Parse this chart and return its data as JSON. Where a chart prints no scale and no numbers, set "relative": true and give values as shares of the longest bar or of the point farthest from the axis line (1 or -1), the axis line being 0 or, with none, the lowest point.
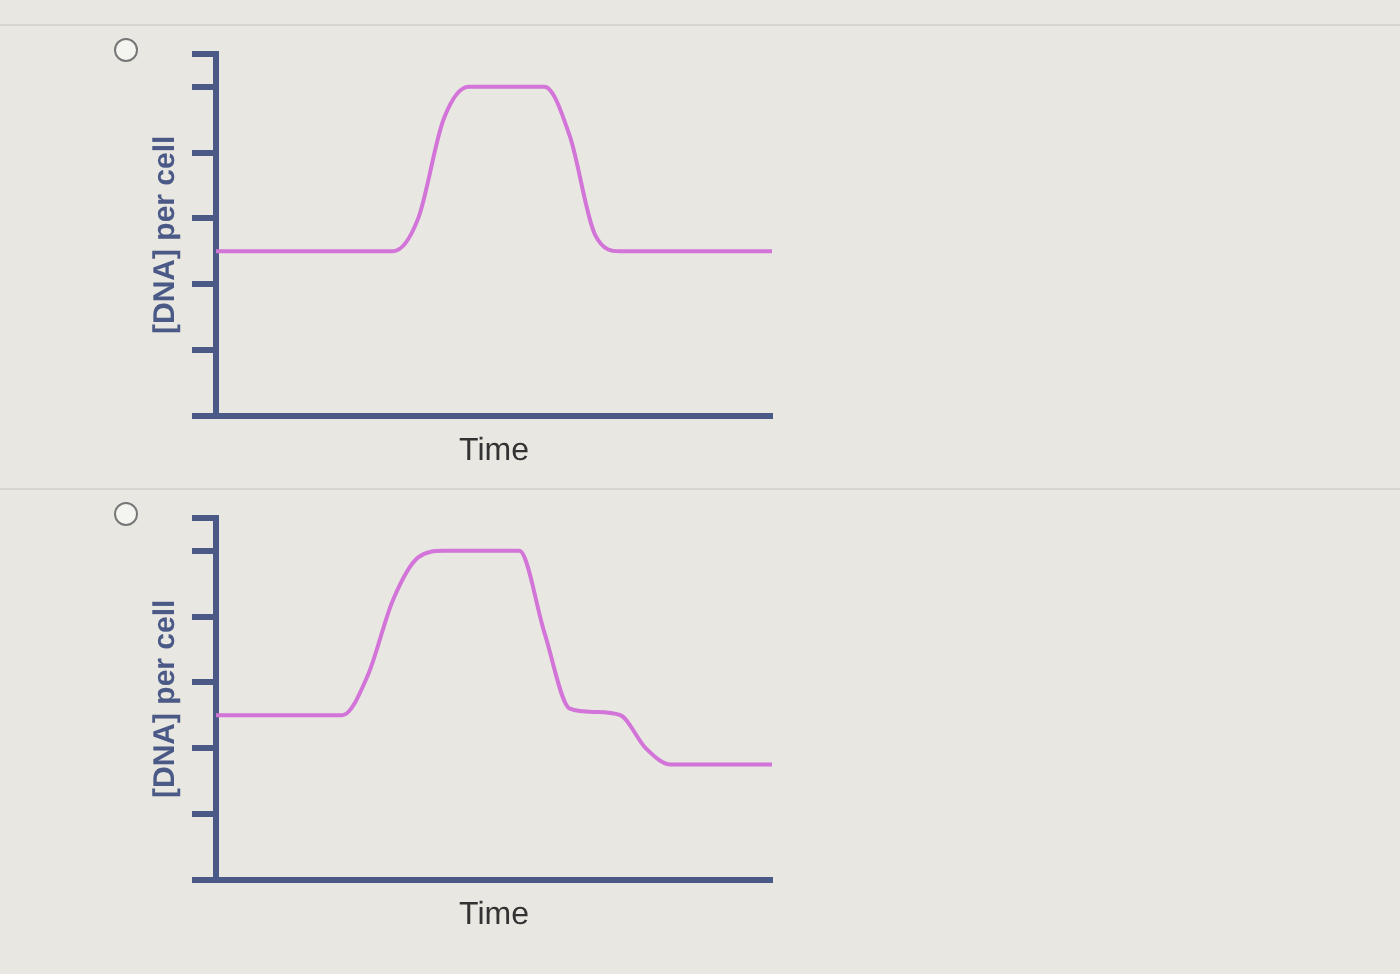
{
  "chart_data": [
    {
      "type": "line",
      "xlabel": "Time",
      "ylabel": "[DNA] per cell",
      "relative": true,
      "categories": [
        null,
        null,
        null,
        null,
        null,
        null,
        null,
        null,
        null,
        null,
        null,
        null,
        null,
        null,
        null,
        null,
        null,
        null,
        null,
        null,
        null,
        null,
        null
      ],
      "series": [
        {
          "color": "#d274d8",
          "values": [
            0.5,
            0.5,
            0.5,
            0.5,
            0.5,
            0.5,
            0.5,
            0.5,
            0.6,
            0.9,
            1,
            1,
            1,
            1,
            0.85,
            0.55,
            0.5,
            0.5,
            0.5,
            0.5,
            0.5,
            0.5,
            0.5
          ]
        }
      ],
      "grid": false,
      "legend": false,
      "marker": "none"
    },
    {
      "type": "line",
      "xlabel": "Time",
      "ylabel": "[DNA] per cell",
      "relative": true,
      "categories": [
        null,
        null,
        null,
        null,
        null,
        null,
        null,
        null,
        null,
        null,
        null,
        null,
        null,
        null,
        null,
        null,
        null,
        null,
        null,
        null,
        null,
        null,
        null
      ],
      "series": [
        {
          "color": "#d274d8",
          "values": [
            0.5,
            0.5,
            0.5,
            0.5,
            0.5,
            0.5,
            0.62,
            0.85,
            0.98,
            1,
            1,
            1,
            1,
            0.75,
            0.52,
            0.51,
            0.5,
            0.4,
            0.35,
            0.35,
            0.35,
            0.35,
            0.35
          ]
        }
      ],
      "grid": false,
      "legend": false,
      "marker": "none"
    }
  ]
}
